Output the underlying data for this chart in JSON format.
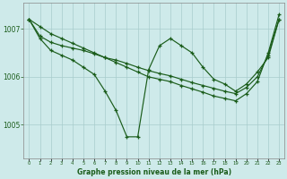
{
  "title": "Graphe pression niveau de la mer (hPa)",
  "bg_color": "#ceeaea",
  "line_color": "#1a5c1a",
  "grid_color": "#a8cccc",
  "hours": [
    0,
    1,
    2,
    3,
    4,
    5,
    6,
    7,
    8,
    9,
    10,
    11,
    12,
    13,
    14,
    15,
    16,
    17,
    18,
    19,
    20,
    21,
    22,
    23
  ],
  "s_top": [
    1007.2,
    1007.05,
    1006.9,
    1006.8,
    1006.7,
    1006.6,
    1006.5,
    1006.4,
    1006.3,
    1006.2,
    1006.1,
    1006.0,
    1005.95,
    1005.9,
    1005.82,
    1005.75,
    1005.68,
    1005.6,
    1005.55,
    1005.5,
    1005.65,
    1005.9,
    1006.5,
    1007.3
  ],
  "s_mid": [
    1007.2,
    1006.85,
    1006.72,
    1006.65,
    1006.6,
    1006.55,
    1006.48,
    1006.4,
    1006.35,
    1006.28,
    1006.2,
    1006.13,
    1006.07,
    1006.02,
    1005.95,
    1005.88,
    1005.82,
    1005.76,
    1005.7,
    1005.65,
    1005.78,
    1006.0,
    1006.45,
    1007.2
  ],
  "s_low": [
    1007.2,
    1006.8,
    1006.55,
    1006.45,
    1006.35,
    1006.2,
    1006.05,
    1005.7,
    1005.3,
    1004.75,
    1004.75,
    1006.15,
    1006.65,
    1006.8,
    1006.65,
    1006.5,
    1006.2,
    1005.95,
    1005.85,
    1005.7,
    1005.85,
    1006.1,
    1006.4,
    1007.2
  ],
  "ylim_min": 1004.3,
  "ylim_max": 1007.55,
  "yticks": [
    1005.0,
    1006.0,
    1007.0
  ]
}
